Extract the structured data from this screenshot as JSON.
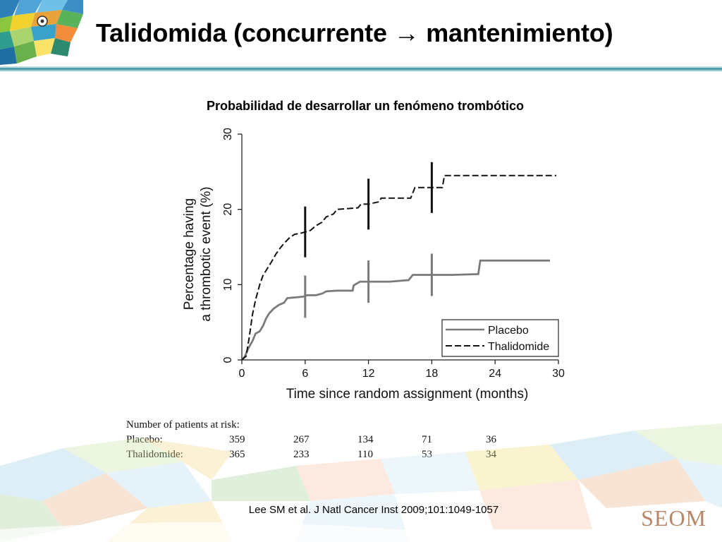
{
  "slide": {
    "title": "Talidomida (concurrente → mantenimiento)",
    "subtitle": "Probabilidad de desarrollar un fenómeno trombótico",
    "citation": "Lee SM et al. J Natl Cancer Inst 2009;101:1049-1057",
    "logo_text": "SEOM",
    "accent_color": "#4f9ea8"
  },
  "chart_data": {
    "type": "line",
    "xlabel": "Time since random assignment (months)",
    "ylabel_lines": [
      "Percentage having",
      "a thrombotic event (%)"
    ],
    "xlim": [
      0,
      30
    ],
    "ylim": [
      0,
      30
    ],
    "xticks": [
      0,
      6,
      12,
      18,
      24,
      30
    ],
    "yticks": [
      0,
      10,
      20,
      30
    ],
    "grid": false,
    "legend_position": "bottom-right",
    "series": [
      {
        "name": "Placebo",
        "style": "solid",
        "color": "#7a7a7a",
        "points": [
          [
            0,
            0
          ],
          [
            0.3,
            0.5
          ],
          [
            0.6,
            1.5
          ],
          [
            1,
            2.5
          ],
          [
            1.3,
            3.5
          ],
          [
            1.7,
            3.8
          ],
          [
            2,
            4.5
          ],
          [
            2.3,
            5.5
          ],
          [
            2.6,
            6.2
          ],
          [
            3,
            6.8
          ],
          [
            3.5,
            7.3
          ],
          [
            4,
            7.6
          ],
          [
            4.3,
            8.2
          ],
          [
            5,
            8.3
          ],
          [
            5.8,
            8.4
          ],
          [
            6.2,
            8.6
          ],
          [
            7,
            8.6
          ],
          [
            7.6,
            8.8
          ],
          [
            8,
            9.1
          ],
          [
            9,
            9.2
          ],
          [
            10.5,
            9.2
          ],
          [
            10.6,
            9.9
          ],
          [
            11.2,
            10.4
          ],
          [
            14,
            10.4
          ],
          [
            15.8,
            10.6
          ],
          [
            16.2,
            11.3
          ],
          [
            18,
            11.3
          ],
          [
            20,
            11.3
          ],
          [
            22.4,
            11.4
          ],
          [
            22.6,
            13.2
          ],
          [
            29.2,
            13.2
          ]
        ],
        "censor_marks": [
          6,
          12,
          18
        ]
      },
      {
        "name": "Thalidomide",
        "style": "dashed",
        "color": "#111111",
        "points": [
          [
            0,
            0
          ],
          [
            0.4,
            0.5
          ],
          [
            0.7,
            3
          ],
          [
            1,
            6
          ],
          [
            1.3,
            8
          ],
          [
            1.7,
            10
          ],
          [
            2,
            11.2
          ],
          [
            2.4,
            12.1
          ],
          [
            2.8,
            13
          ],
          [
            3.2,
            14
          ],
          [
            3.6,
            14.8
          ],
          [
            4,
            15.5
          ],
          [
            4.5,
            16.2
          ],
          [
            5,
            16.7
          ],
          [
            5.5,
            16.8
          ],
          [
            6,
            17
          ],
          [
            6.5,
            17.2
          ],
          [
            7,
            17.8
          ],
          [
            7.6,
            18.3
          ],
          [
            8,
            19
          ],
          [
            8.7,
            19.4
          ],
          [
            9,
            20
          ],
          [
            10,
            20.1
          ],
          [
            11,
            20.2
          ],
          [
            11.3,
            20.7
          ],
          [
            12,
            20.7
          ],
          [
            13,
            21
          ],
          [
            13.2,
            21.5
          ],
          [
            16,
            21.5
          ],
          [
            16.4,
            22.9
          ],
          [
            18,
            22.9
          ],
          [
            19,
            22.9
          ],
          [
            19.2,
            24.5
          ],
          [
            29.8,
            24.5
          ]
        ],
        "censor_marks": [
          6,
          12,
          18
        ]
      }
    ],
    "risk_table": {
      "caption": "Number of patients at risk:",
      "rows": [
        {
          "label": "Placebo:",
          "values": [
            "359",
            "267",
            "134",
            "71",
            "36"
          ]
        },
        {
          "label": "Thalidomide:",
          "values": [
            "365",
            "233",
            "110",
            "53",
            "34"
          ]
        }
      ]
    }
  }
}
